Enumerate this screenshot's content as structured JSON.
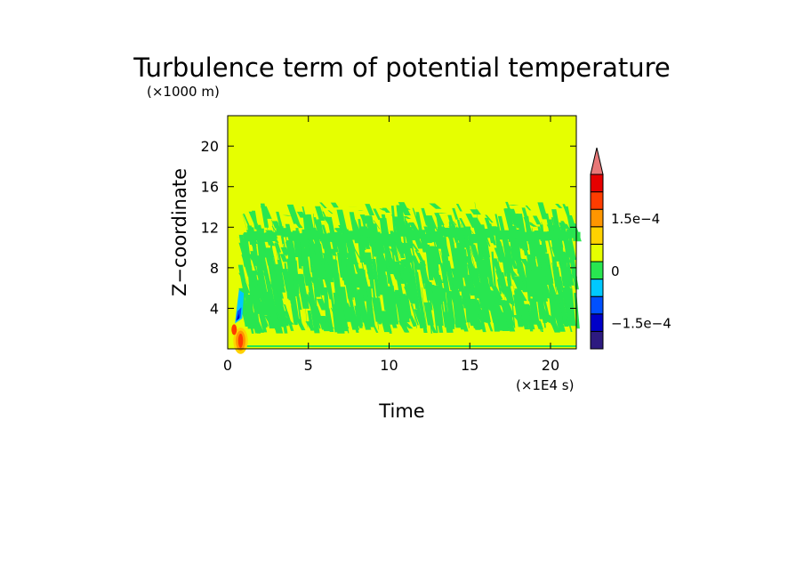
{
  "chart_data": {
    "type": "heatmap",
    "title": "Turbulence term of potential temperature",
    "xlabel": "Time",
    "ylabel": "Z−coordinate",
    "x_multiplier": "(×1E4 s)",
    "y_multiplier": "(×1000 m)",
    "xlim": [
      0,
      21.6
    ],
    "ylim": [
      0,
      23
    ],
    "x_ticks": [
      0,
      5,
      10,
      15,
      20
    ],
    "x_tick_labels": [
      "0",
      "5",
      "10",
      "15",
      "20"
    ],
    "y_ticks": [
      4,
      8,
      12,
      16,
      20
    ],
    "y_tick_labels": [
      "4",
      "8",
      "12",
      "16",
      "20"
    ],
    "colorbar": {
      "levels": [
        -0.000175,
        -0.000125,
        -7.5e-05,
        -2.5e-05,
        2.5e-05,
        7.5e-05,
        0.000125,
        0.000175
      ],
      "colors": [
        "#2d1a80",
        "#0000c8",
        "#0050ff",
        "#00c8ff",
        "#28e650",
        "#e6ff00",
        "#ffd200",
        "#ff9600",
        "#ff3c00",
        "#e60000",
        "#e87878"
      ],
      "tick_values": [
        0.00015,
        0,
        -0.00015
      ],
      "tick_labels": [
        "1.5e−4",
        "0",
        "−1.5e−4"
      ],
      "extend_max": true
    },
    "field_summary": {
      "background_value": 0,
      "negative_band_z_range": [
        1.5,
        14
      ],
      "negative_band_start_time": 1,
      "strong_negative_time": 0.7,
      "strong_negative_z_range": [
        2.5,
        5.5
      ],
      "positive_spot_time": 0.8,
      "positive_spot_z_range": [
        0.1,
        1.5
      ]
    }
  }
}
